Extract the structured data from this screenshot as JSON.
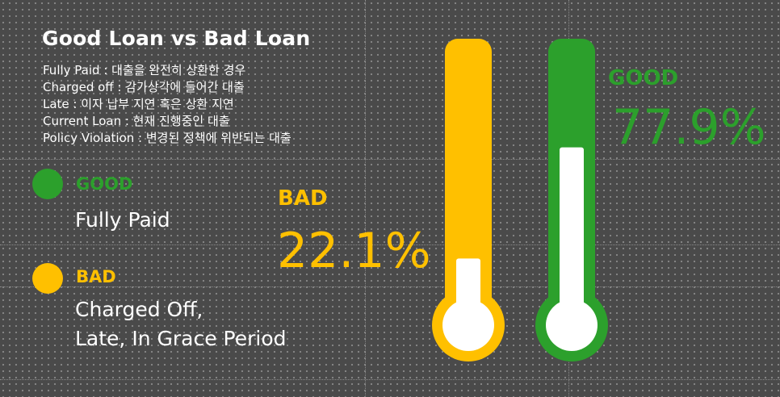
{
  "title": "Good Loan vs Bad Loan",
  "definitions": [
    "Fully Paid : 대출을 완전히 상환한 경우",
    "Charged off : 감가상각에 들어간 대출",
    "Late : 이자 납부 지연 혹은 상환 지연",
    "Current Loan : 현재 진행중인 대출",
    "Policy Violation : 변경된 정책에 위반되는 대출"
  ],
  "legend": {
    "good": {
      "label": "GOOD",
      "desc": "Fully Paid"
    },
    "bad": {
      "label": "BAD",
      "desc_line1": "Charged Off,",
      "desc_line2": "Late,  In Grace Period"
    }
  },
  "chart_data": {
    "type": "thermometer",
    "title": "Good Loan vs Bad Loan",
    "unit": "%",
    "ylim": [
      0,
      100
    ],
    "series": [
      {
        "name": "BAD",
        "value": 22.1,
        "label": "22.1%",
        "color": "#FFC000"
      },
      {
        "name": "GOOD",
        "value": 77.9,
        "label": "77.9%",
        "color": "#2CA02C"
      }
    ]
  },
  "colors": {
    "good": "#2CA02C",
    "bad": "#FFC000",
    "background": "#4A4A4A",
    "fill": "#FFFFFF"
  }
}
